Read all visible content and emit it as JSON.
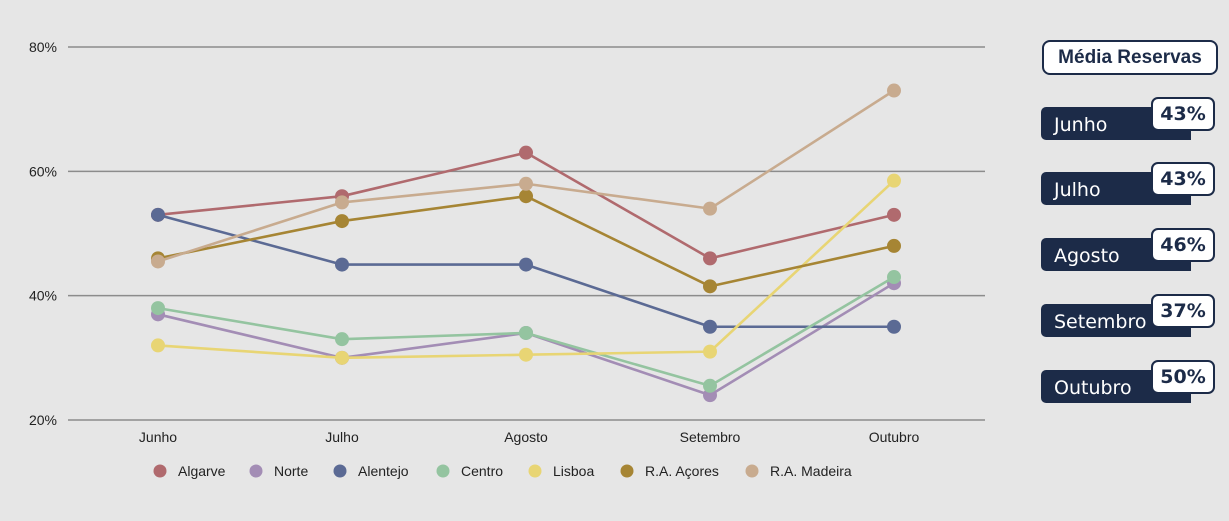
{
  "chart_data": {
    "type": "line",
    "categories": [
      "Junho",
      "Julho",
      "Agosto",
      "Setembro",
      "Outubro"
    ],
    "ylim": [
      20,
      80
    ],
    "yticks": [
      20,
      40,
      60,
      80
    ],
    "ytick_labels": [
      "20%",
      "40%",
      "60%",
      "80%"
    ],
    "grid": true,
    "legend_position": "bottom",
    "series": [
      {
        "name": "Algarve",
        "color": "#b06a6e",
        "values": [
          53,
          56,
          63,
          46,
          53
        ]
      },
      {
        "name": "Norte",
        "color": "#a38db5",
        "values": [
          37,
          30,
          34,
          24,
          42
        ]
      },
      {
        "name": "Alentejo",
        "color": "#5b6a94",
        "values": [
          53,
          45,
          45,
          35,
          35
        ]
      },
      {
        "name": "Centro",
        "color": "#94c4a0",
        "values": [
          38,
          33,
          34,
          25.5,
          43
        ]
      },
      {
        "name": "Lisboa",
        "color": "#e8d574",
        "values": [
          32,
          30,
          30.5,
          31,
          58.5
        ]
      },
      {
        "name": "R.A. Açores",
        "color": "#a68534",
        "values": [
          46,
          52,
          56,
          41.5,
          48
        ]
      },
      {
        "name": "R.A. Madeira",
        "color": "#c8ab8f",
        "values": [
          45.5,
          55,
          58,
          54,
          73
        ]
      }
    ]
  },
  "summary": {
    "title": "Média Reservas",
    "months": [
      {
        "label": "Junho",
        "value": "43%"
      },
      {
        "label": "Julho",
        "value": "43%"
      },
      {
        "label": "Agosto",
        "value": "46%"
      },
      {
        "label": "Setembro",
        "value": "37%"
      },
      {
        "label": "Outubro",
        "value": "50%"
      }
    ]
  },
  "colors": {
    "panel_navy": "#1c2b48",
    "background": "#e6e6e6",
    "gridline": "#8c8c8c"
  }
}
